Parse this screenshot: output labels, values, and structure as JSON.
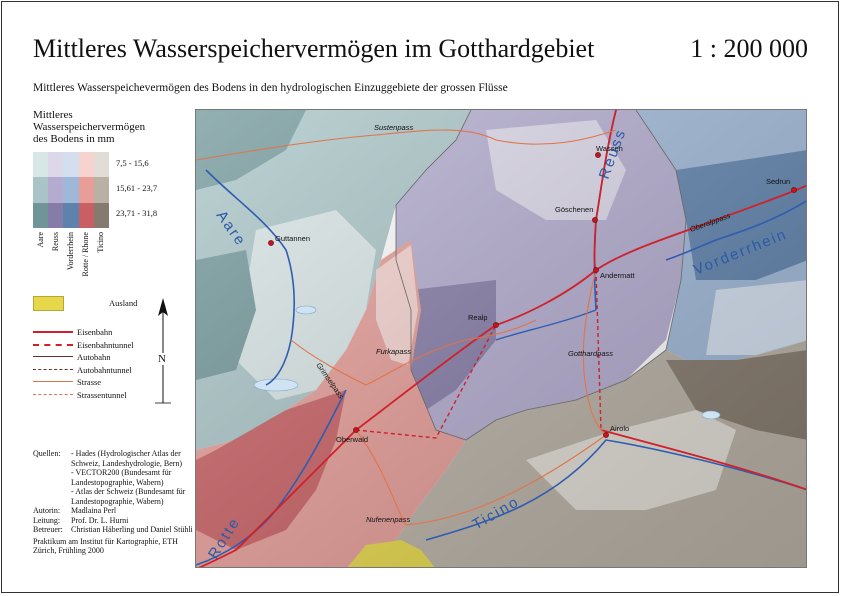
{
  "title": "Mittleres Wasserspeichervermögen im Gotthardgebiet",
  "scale": "1 : 200 000",
  "subtitle": "Mittleres Wasserspeichevermögen des Bodens in den hydrologischen Einzuggebiete der grossen Flüsse",
  "legend": {
    "title_lines": [
      "Mittleres",
      "Wasserspeichervermögen",
      "des Bodens in mm"
    ],
    "classes": [
      "7,5 - 15,6",
      "15,61 - 23,7",
      "23,71 - 31,8"
    ],
    "rivers": [
      "Aare",
      "Reuss",
      "Vorderrhein",
      "Rotte / Rhone",
      "Ticino"
    ],
    "colors": {
      "aare": [
        "#d9e6e6",
        "#a8c4c6",
        "#6f9598"
      ],
      "reuss": [
        "#dcd8ea",
        "#b3acd0",
        "#867ca8"
      ],
      "vorderrhein": [
        "#d3dfef",
        "#9fb8d8",
        "#5f82ad"
      ],
      "rhone": [
        "#f6d3cf",
        "#e79d98",
        "#c95f63"
      ],
      "ticino": [
        "#e1ddd6",
        "#b9b1a6",
        "#857a6e"
      ]
    },
    "ausland_label": "Ausland",
    "ausland_color": "#e7d84b",
    "lines": [
      {
        "label": "Eisenbahn",
        "color": "#d0202a",
        "style": "solid"
      },
      {
        "label": "Eisenbahntunnel",
        "color": "#d0202a",
        "style": "dashed"
      },
      {
        "label": "Autobahn",
        "color": "#6b2e2a",
        "style": "solid"
      },
      {
        "label": "Autobahntunnel",
        "color": "#6b2e2a",
        "style": "dashed"
      },
      {
        "label": "Strasse",
        "color": "#e0744a",
        "style": "solid"
      },
      {
        "label": "Strassentunnel",
        "color": "#e0744a",
        "style": "dashed"
      }
    ]
  },
  "north_label": "N",
  "credits": [
    {
      "key": "Quellen:",
      "value": "- Hades (Hydrologischer Atlas der Schweiz, Landeshydrologie, Bern)"
    },
    {
      "key": "",
      "value": "- VECTOR200 (Bundesamt für Landestopographie, Wabern)"
    },
    {
      "key": "",
      "value": "- Atlas der Schweiz (Bundesamt für Landestopographie, Wabern)"
    },
    {
      "key": "Autorin:",
      "value": "Madlaina Perl"
    },
    {
      "key": "Leitung:",
      "value": "Prof. Dr. L. Hurni"
    },
    {
      "key": "Betreuer:",
      "value": "Christian Häberling und Daniel Stühli"
    }
  ],
  "credits_footer": "Praktikum am Institut für Kartographie, ETH Zürich, Frühling 2000",
  "map": {
    "places": [
      "Wassen",
      "Göschenen",
      "Andermatt",
      "Sedrun",
      "Guttannen",
      "Realp",
      "Oberwald",
      "Airolo"
    ],
    "passes": [
      "Sustenpass",
      "Oberalppass",
      "Furkapass",
      "Grimselpass",
      "Gotthardpass",
      "Nufenenpass"
    ],
    "river_labels": [
      "Aare",
      "Reuss",
      "Vorderrhein",
      "Rotte",
      "Ticino"
    ]
  }
}
